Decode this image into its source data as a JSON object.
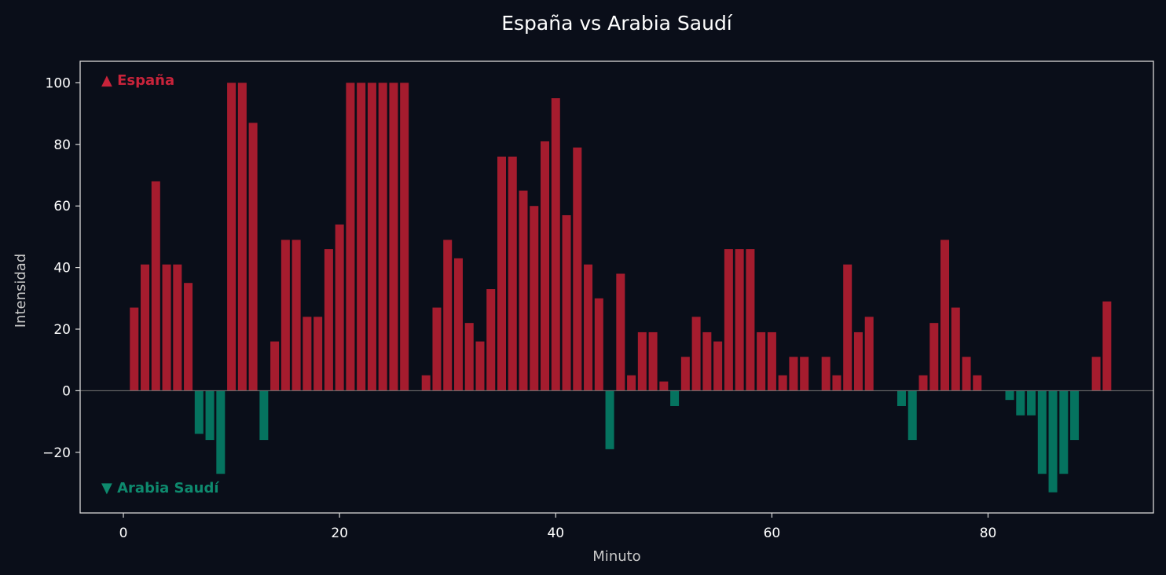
{
  "chart_data": {
    "type": "bar",
    "title": "España vs Arabia Saudí",
    "xlabel": "Minuto",
    "ylabel": "Intensidad",
    "xlim": [
      -4,
      95.3
    ],
    "ylim": [
      -39.7,
      107
    ],
    "xticks": [
      0,
      20,
      40,
      60,
      80
    ],
    "yticks": [
      -20,
      0,
      20,
      40,
      60,
      80,
      100
    ],
    "ytick_labels": [
      "−20",
      "0",
      "20",
      "40",
      "60",
      "80",
      "100"
    ],
    "grid": false,
    "zero_line": true,
    "annotations": {
      "top": "▲ España",
      "bottom": "▼ Arabia Saudí"
    },
    "colors": {
      "positive": "#a51c2e",
      "negative": "#05735f",
      "positive_text": "#c8233a",
      "negative_text": "#0e8a6e",
      "background": "#0a0e19",
      "axes": "#d8d8d8",
      "zero_line": "#777777"
    },
    "x": [
      1,
      2,
      3,
      4,
      5,
      6,
      7,
      8,
      9,
      10,
      11,
      12,
      13,
      14,
      15,
      16,
      17,
      18,
      19,
      20,
      21,
      22,
      23,
      24,
      25,
      26,
      27,
      28,
      29,
      30,
      31,
      32,
      33,
      34,
      35,
      36,
      37,
      38,
      39,
      40,
      41,
      42,
      43,
      44,
      45,
      46,
      47,
      48,
      49,
      50,
      51,
      52,
      53,
      54,
      55,
      56,
      57,
      58,
      59,
      60,
      61,
      62,
      63,
      64,
      65,
      66,
      67,
      68,
      69,
      70,
      71,
      72,
      73,
      74,
      75,
      76,
      77,
      78,
      79,
      80,
      81,
      82,
      83,
      84,
      85,
      86,
      87,
      88,
      89,
      90,
      91
    ],
    "values": [
      27,
      41,
      68,
      41,
      41,
      35,
      -14,
      -16,
      -27,
      100,
      100,
      87,
      -16,
      16,
      49,
      49,
      24,
      24,
      46,
      54,
      100,
      100,
      100,
      100,
      100,
      100,
      0,
      5,
      27,
      49,
      43,
      22,
      16,
      33,
      76,
      76,
      65,
      60,
      81,
      95,
      57,
      79,
      41,
      30,
      -19,
      38,
      5,
      19,
      19,
      3,
      -5,
      11,
      24,
      19,
      16,
      46,
      46,
      46,
      19,
      19,
      5,
      11,
      11,
      0,
      11,
      5,
      41,
      19,
      24,
      0,
      0,
      -5,
      -16,
      5,
      22,
      49,
      27,
      11,
      5,
      0,
      0,
      -3,
      -8,
      -8,
      -27,
      -33,
      -27,
      -16,
      0,
      11,
      29
    ]
  }
}
